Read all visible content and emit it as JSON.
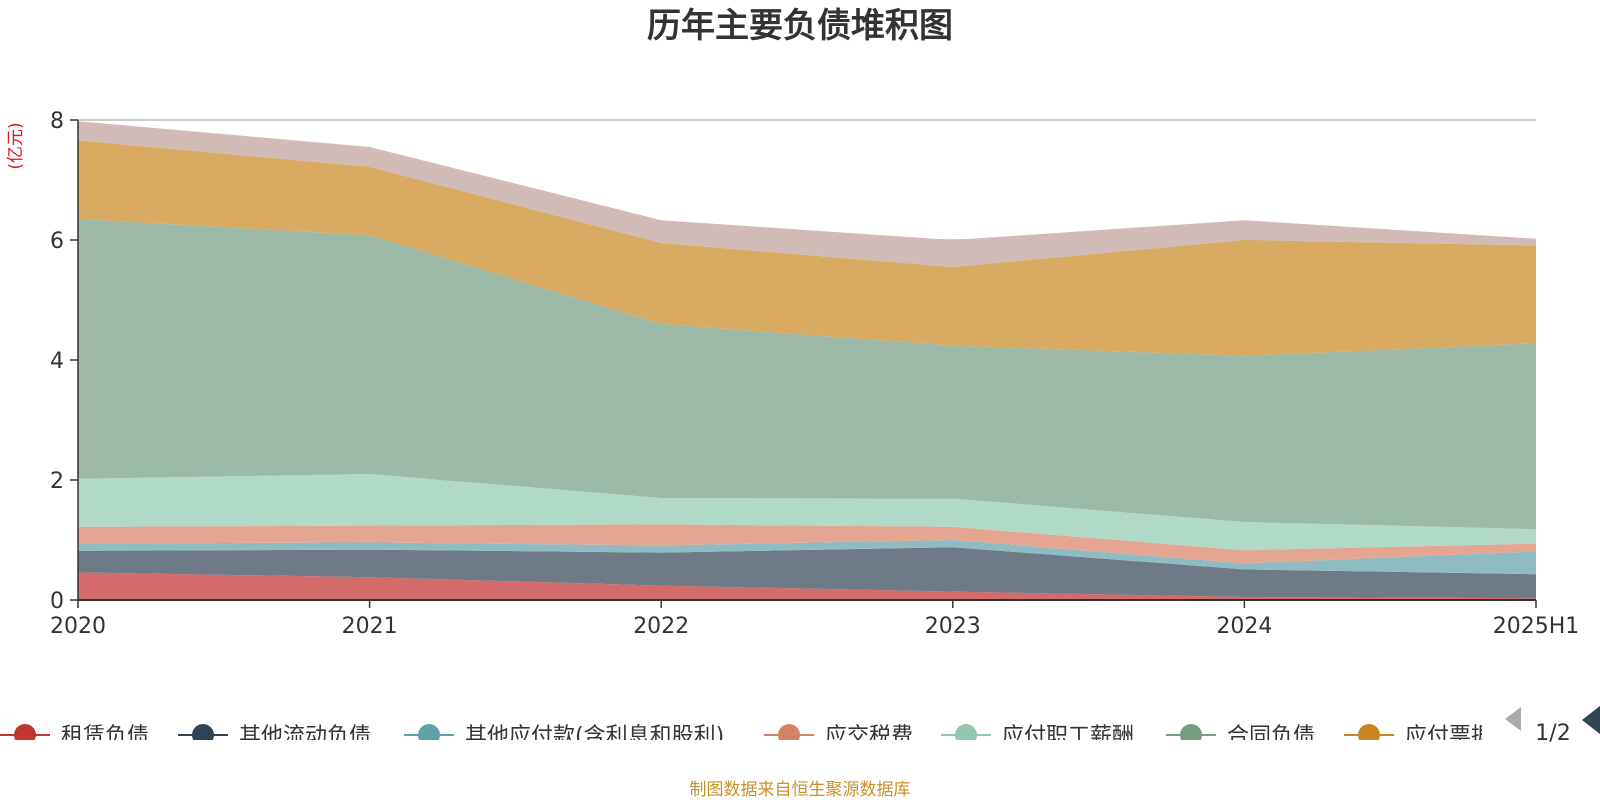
{
  "chart_data": {
    "type": "area",
    "title": "历年主要负债堆积图",
    "unit_label": "(亿元)",
    "categories": [
      "2020",
      "2021",
      "2022",
      "2023",
      "2024",
      "2025H1"
    ],
    "ylim": [
      0,
      8
    ],
    "yticks": [
      "0",
      "2",
      "4",
      "6",
      "8"
    ],
    "grid": true,
    "stacked": true,
    "series": [
      {
        "name": "租赁负债",
        "color": "#d26b6a",
        "values": [
          0.46,
          0.38,
          0.24,
          0.14,
          0.05,
          0.03
        ]
      },
      {
        "name": "其他流动负债",
        "color": "#6e7b86",
        "values": [
          0.36,
          0.46,
          0.55,
          0.74,
          0.46,
          0.4
        ]
      },
      {
        "name": "其他应付款(含利息和股利)",
        "color": "#8fbcc3",
        "values": [
          0.12,
          0.12,
          0.12,
          0.12,
          0.1,
          0.38
        ]
      },
      {
        "name": "应交税费",
        "color": "#e4a591",
        "values": [
          0.28,
          0.28,
          0.35,
          0.22,
          0.22,
          0.13
        ]
      },
      {
        "name": "应付职工薪酬",
        "color": "#b0d9c7",
        "values": [
          0.8,
          0.86,
          0.44,
          0.47,
          0.47,
          0.24
        ]
      },
      {
        "name": "合同负债",
        "color": "#9db9a7",
        "values": [
          4.33,
          3.98,
          2.9,
          2.55,
          2.77,
          3.1
        ]
      },
      {
        "name": "应付票据",
        "color": "#d9aa62",
        "values": [
          1.31,
          1.14,
          1.35,
          1.31,
          1.93,
          1.63
        ]
      },
      {
        "name": "",
        "color": "#d1bbb6",
        "values": [
          0.32,
          0.33,
          0.38,
          0.45,
          0.33,
          0.11
        ]
      }
    ],
    "legend": {
      "position": "bottom",
      "visible_items": [
        {
          "label": "租赁负债",
          "color": "#c23531"
        },
        {
          "label": "其他流动负债",
          "color": "#2f4554"
        },
        {
          "label": "其他应付款(含利息和股利)",
          "color": "#61a0a8"
        },
        {
          "label": "应交税费",
          "color": "#d48265"
        },
        {
          "label": "应付职工薪酬",
          "color": "#91c7ae"
        },
        {
          "label": "合同负债",
          "color": "#749f83"
        },
        {
          "label": "应付票据",
          "color": "#ca8622"
        }
      ],
      "page": "1/2"
    },
    "source_note": "制图数据来自恒生聚源数据库"
  }
}
